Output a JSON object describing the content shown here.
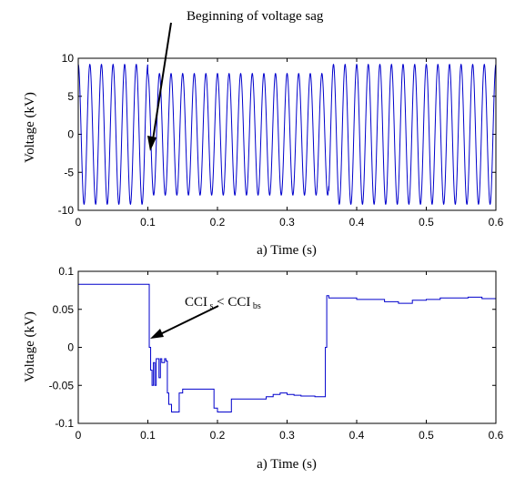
{
  "chart_data": [
    {
      "type": "line",
      "xlabel": "a) Time (s)",
      "ylabel": "Voltage (kV)",
      "xlim": [
        0,
        0.6
      ],
      "ylim": [
        -10,
        10
      ],
      "xticks": [
        "0",
        "0.1",
        "0.2",
        "0.3",
        "0.4",
        "0.5",
        "0.6"
      ],
      "yticks": [
        "-10",
        "-5",
        "0",
        "5",
        "10"
      ],
      "grid": false,
      "signal": {
        "frequency_hz": 60,
        "amplitude_before_kV": 9.2,
        "amplitude_during_sag_kV": 8.0,
        "sag_start_s": 0.1,
        "sag_end_s": 0.36,
        "t_end_s": 0.6
      },
      "annotation": {
        "text": "Beginning of voltage sag",
        "x": 0.1
      }
    },
    {
      "type": "line",
      "xlabel": "a) Time (s)",
      "ylabel": "Voltage (kV)",
      "xlim": [
        0,
        0.6
      ],
      "ylim": [
        -0.1,
        0.1
      ],
      "xticks": [
        "0",
        "0.1",
        "0.2",
        "0.3",
        "0.4",
        "0.5",
        "0.6"
      ],
      "yticks": [
        "-0.1",
        "-0.05",
        "0",
        "0.05",
        "0.1"
      ],
      "grid": false,
      "x": [
        0,
        0.1,
        0.102,
        0.104,
        0.106,
        0.108,
        0.11,
        0.112,
        0.114,
        0.116,
        0.118,
        0.12,
        0.122,
        0.124,
        0.126,
        0.128,
        0.13,
        0.134,
        0.138,
        0.142,
        0.145,
        0.15,
        0.19,
        0.195,
        0.2,
        0.21,
        0.22,
        0.26,
        0.27,
        0.28,
        0.29,
        0.3,
        0.31,
        0.32,
        0.33,
        0.34,
        0.35,
        0.355,
        0.357,
        0.36,
        0.4,
        0.42,
        0.44,
        0.46,
        0.48,
        0.5,
        0.52,
        0.54,
        0.56,
        0.58,
        0.6
      ],
      "y": [
        0.083,
        0.083,
        0.0,
        -0.03,
        -0.05,
        -0.02,
        -0.05,
        -0.015,
        -0.015,
        -0.04,
        -0.015,
        -0.02,
        -0.02,
        -0.015,
        -0.018,
        -0.06,
        -0.075,
        -0.085,
        -0.085,
        -0.085,
        -0.06,
        -0.055,
        -0.055,
        -0.08,
        -0.085,
        -0.085,
        -0.068,
        -0.068,
        -0.065,
        -0.062,
        -0.06,
        -0.062,
        -0.063,
        -0.064,
        -0.064,
        -0.065,
        -0.065,
        0.0,
        0.068,
        0.065,
        0.063,
        0.063,
        0.06,
        0.058,
        0.062,
        0.063,
        0.065,
        0.065,
        0.066,
        0.064,
        0.064
      ],
      "annotation": {
        "text": "CCI s < CCI bs",
        "x": 0.11,
        "y": -0.02
      }
    }
  ]
}
